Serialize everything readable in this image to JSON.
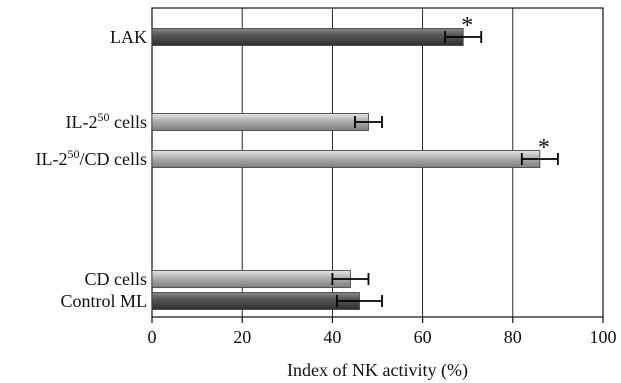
{
  "chart_data": {
    "type": "bar",
    "orientation": "horizontal",
    "xlabel": "Index of NK activity (%)",
    "xlim": [
      0,
      100
    ],
    "xticks": [
      0,
      20,
      40,
      60,
      80,
      100
    ],
    "xtick_labels": [
      "0",
      "20",
      "40",
      "60",
      "80",
      "100"
    ],
    "grid": "vertical",
    "bars": [
      {
        "label": "LAK",
        "label_main": "LAK",
        "label_sup": "",
        "label_tail": "",
        "value": 69,
        "error": 4,
        "significant": true,
        "shade": "dark"
      },
      {
        "label": "IL-2^50 cells",
        "label_main": "IL-2",
        "label_sup": "50",
        "label_tail": " cells",
        "value": 48,
        "error": 3,
        "significant": false,
        "shade": "light"
      },
      {
        "label": "IL-2^50/CD cells",
        "label_main": "IL-2",
        "label_sup": "50",
        "label_tail": "/CD cells",
        "value": 86,
        "error": 4,
        "significant": true,
        "shade": "light"
      },
      {
        "label": "CD cells",
        "label_main": "CD cells",
        "label_sup": "",
        "label_tail": "",
        "value": 44,
        "error": 4,
        "significant": false,
        "shade": "light"
      },
      {
        "label": "Control ML",
        "label_main": "Control ML",
        "label_sup": "",
        "label_tail": "",
        "value": 46,
        "error": 5,
        "significant": false,
        "shade": "dark"
      }
    ],
    "significance_marker": "*"
  },
  "colors": {
    "dark_bar": "#4a4a4a",
    "light_bar": "#a6a6a6",
    "axis": "#111111"
  }
}
